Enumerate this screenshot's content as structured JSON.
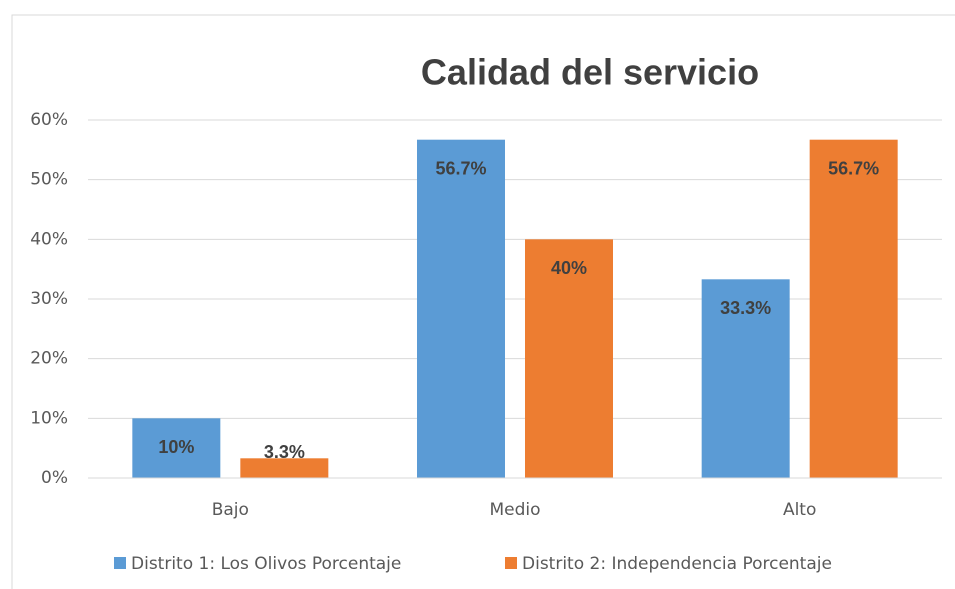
{
  "chart_data": {
    "type": "bar",
    "title": "Calidad del servicio",
    "categories": [
      "Bajo",
      "Medio",
      "Alto"
    ],
    "series": [
      {
        "name": "Distrito 1: Los Olivos Porcentaje",
        "color": "#5b9bd5",
        "values": [
          10,
          56.7,
          33.3
        ],
        "value_labels": [
          "10%",
          "56.7%",
          "33.3%"
        ]
      },
      {
        "name": "Distrito 2: Independencia Porcentaje",
        "color": "#ed7d31",
        "values": [
          3.3,
          40,
          56.7
        ],
        "value_labels": [
          "3.3%",
          "40%",
          "56.7%"
        ]
      }
    ],
    "ylim": [
      0,
      60
    ],
    "yticks": [
      {
        "value": 0,
        "label": "0%"
      },
      {
        "value": 10,
        "label": "10%"
      },
      {
        "value": 20,
        "label": "20%"
      },
      {
        "value": 30,
        "label": "30%"
      },
      {
        "value": 40,
        "label": "40%"
      },
      {
        "value": 50,
        "label": "50%"
      },
      {
        "value": 60,
        "label": "60%"
      }
    ],
    "grid": true,
    "legend": "bottom"
  }
}
